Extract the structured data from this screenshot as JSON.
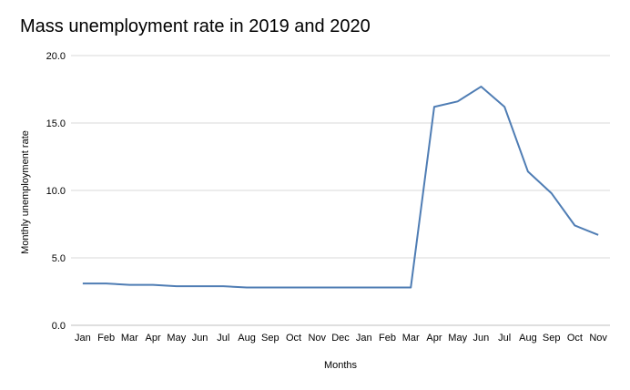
{
  "chart_data": {
    "type": "line",
    "title": "Mass unemployment rate in 2019 and 2020",
    "xlabel": "Months",
    "ylabel": "Monthly unemployment rate",
    "ylim": [
      0,
      20
    ],
    "yticks": [
      "0.0",
      "5.0",
      "10.0",
      "15.0",
      "20.0"
    ],
    "grid": true,
    "legend": "none",
    "categories": [
      "Jan",
      "Feb",
      "Mar",
      "Apr",
      "May",
      "Jun",
      "Jul",
      "Aug",
      "Sep",
      "Oct",
      "Nov",
      "Dec",
      "Jan",
      "Feb",
      "Mar",
      "Apr",
      "May",
      "Jun",
      "Jul",
      "Aug",
      "Sep",
      "Oct",
      "Nov"
    ],
    "series": [
      {
        "values": [
          3.1,
          3.1,
          3.0,
          3.0,
          2.9,
          2.9,
          2.9,
          2.8,
          2.8,
          2.8,
          2.8,
          2.8,
          2.8,
          2.8,
          2.8,
          16.2,
          16.6,
          17.7,
          16.2,
          11.4,
          9.8,
          7.4,
          6.7
        ],
        "color": "#4f7db4"
      }
    ],
    "colors": {
      "line": "#4f7db4",
      "grid": "#d9d9d9",
      "axis": "#bfbfbf"
    }
  }
}
